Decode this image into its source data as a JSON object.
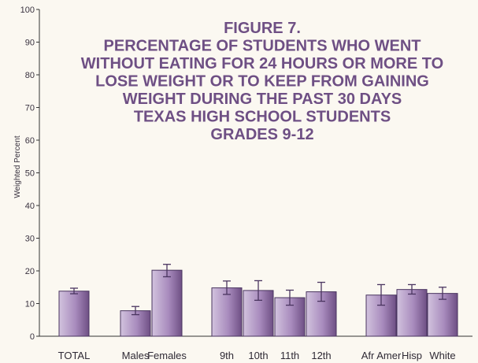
{
  "chart_data": {
    "type": "bar",
    "title": [
      "FIGURE 7.",
      "PERCENTAGE OF STUDENTS WHO WENT",
      "WITHOUT EATING FOR 24 HOURS OR MORE TO",
      "LOSE WEIGHT OR TO KEEP FROM GAINING",
      "WEIGHT  DURING THE PAST 30  DAYS",
      "TEXAS HIGH  SCHOOL STUDENTS",
      "GRADES 9-12"
    ],
    "ylabel": "Weighted Percent",
    "xlabel": "",
    "ylim": [
      0,
      100
    ],
    "yticks": [
      0,
      10,
      20,
      30,
      40,
      50,
      60,
      70,
      80,
      90,
      100
    ],
    "categories": [
      "TOTAL",
      "Males",
      "Females",
      "9th",
      "10th",
      "11th",
      "12th",
      "Afr Amer",
      "Hisp",
      "White"
    ],
    "values": [
      13.8,
      7.8,
      20.2,
      14.8,
      14.0,
      11.8,
      13.6,
      12.6,
      14.3,
      13.1
    ],
    "error_low": [
      13.0,
      6.6,
      18.2,
      12.8,
      11.0,
      9.5,
      10.7,
      9.5,
      12.9,
      11.3
    ],
    "error_high": [
      14.7,
      9.1,
      22.0,
      16.9,
      17.0,
      14.1,
      16.5,
      15.8,
      15.8,
      15.0
    ],
    "groups": [
      [
        "TOTAL"
      ],
      [
        "Males",
        "Females"
      ],
      [
        "9th",
        "10th",
        "11th",
        "12th"
      ],
      [
        "Afr Amer",
        "Hisp",
        "White"
      ]
    ],
    "grid": false,
    "legend": "none",
    "colors": {
      "bar": "#6e4f84",
      "bar_light": "#c9b8d6",
      "title": "#6e4f84",
      "axis": "#333333"
    }
  }
}
